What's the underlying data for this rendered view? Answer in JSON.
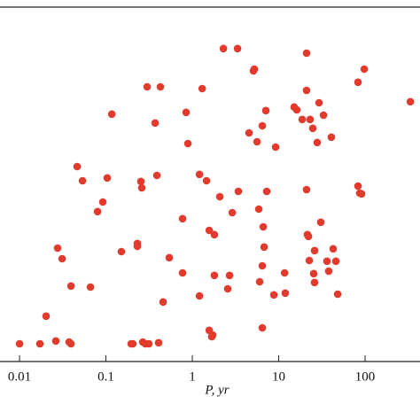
{
  "chart_data": {
    "type": "scatter",
    "x_label": "P, yr",
    "log_x": true,
    "color": "#e23a2c",
    "xlim": [
      0.00594,
      432
    ],
    "ylim": [
      0,
      100
    ],
    "xticks": [
      0.01,
      0.1,
      1,
      10,
      100
    ],
    "x": [
      0.01,
      0.0172,
      0.0203,
      0.0263,
      0.0276,
      0.0311,
      0.0375,
      0.0394,
      0.0394,
      0.0464,
      0.0535,
      0.0662,
      0.08,
      0.092,
      0.1035,
      0.117,
      0.151,
      0.196,
      0.205,
      0.231,
      0.231,
      0.254,
      0.26,
      0.267,
      0.286,
      0.3,
      0.314,
      0.371,
      0.389,
      0.407,
      0.427,
      0.459,
      0.541,
      0.771,
      0.771,
      0.847,
      0.889,
      1.21,
      1.21,
      1.3,
      1.46,
      1.57,
      1.68,
      1.57,
      1.72,
      1.8,
      1.8,
      2.08,
      2.29,
      2.57,
      2.7,
      2.9,
      3.34,
      3.41,
      4.53,
      5.1,
      5.22,
      5.61,
      5.88,
      6.02,
      6.46,
      6.46,
      6.62,
      6.78,
      7.1,
      7.27,
      6.46,
      8.79,
      9.21,
      11.7,
      11.9,
      15.1,
      16.2,
      18.7,
      21.0,
      21.0,
      21.0,
      21.5,
      22.1,
      22.6,
      23.1,
      24.8,
      25.4,
      26.0,
      26.0,
      27.9,
      29.3,
      30.7,
      33.0,
      36.2,
      37.9,
      40.7,
      42.7,
      45.9,
      48.1,
      82.8,
      82.8,
      86.7,
      91.0,
      97.7,
      334
    ],
    "values": [
      5,
      5,
      12.8,
      5.8,
      32,
      29,
      5.5,
      5,
      21.3,
      55,
      51,
      21,
      42.3,
      45,
      51.8,
      69.8,
      31,
      5,
      5,
      33.3,
      32.5,
      50.8,
      49,
      5.5,
      5,
      77.5,
      5,
      67.3,
      52.5,
      5.3,
      77.5,
      16.8,
      29.3,
      25,
      40.3,
      70.3,
      61.5,
      18.5,
      52.8,
      77,
      51,
      8.8,
      7,
      37,
      7.5,
      24.3,
      35.8,
      46.5,
      88.3,
      20.5,
      24.3,
      42,
      88.3,
      48,
      64.5,
      82,
      82.5,
      62,
      43,
      22.5,
      66.5,
      27,
      38,
      32.3,
      70.8,
      48,
      9.5,
      18.8,
      60.5,
      25,
      19.3,
      71.8,
      71,
      68.3,
      87,
      76.5,
      48.5,
      35.8,
      35.3,
      28.5,
      68.3,
      65.8,
      24.8,
      22.3,
      31.3,
      61.8,
      73,
      39.3,
      69.5,
      28.3,
      25.5,
      63.3,
      31.8,
      28.3,
      19,
      78.8,
      49.5,
      47.5,
      47.3,
      82.5,
      73.3
    ]
  }
}
